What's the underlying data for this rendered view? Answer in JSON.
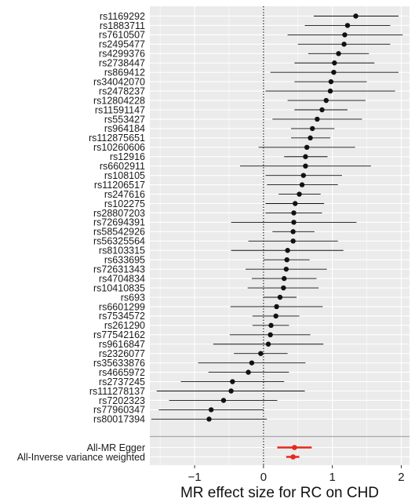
{
  "chart_data": {
    "type": "forest",
    "xlabel": "MR effect size for RC on CHD",
    "xlim": [
      -1.65,
      2.12
    ],
    "xticks": [
      -1,
      0,
      1,
      2
    ],
    "grid": true,
    "reference_line": 0,
    "colors": {
      "panel": "#ebebeb",
      "grid": "#ffffff",
      "snp": "#111111",
      "summary": "#e8281c"
    },
    "snps": [
      {
        "label": "rs1169292",
        "est": 1.34,
        "lo": 0.73,
        "hi": 1.96
      },
      {
        "label": "rs1883711",
        "est": 1.22,
        "lo": 0.6,
        "hi": 1.84
      },
      {
        "label": "rs7610507",
        "est": 1.18,
        "lo": 0.35,
        "hi": 2.02
      },
      {
        "label": "rs2495477",
        "est": 1.17,
        "lo": 0.5,
        "hi": 1.84
      },
      {
        "label": "rs4299376",
        "est": 1.09,
        "lo": 0.65,
        "hi": 1.53
      },
      {
        "label": "rs2738447",
        "est": 1.03,
        "lo": 0.45,
        "hi": 1.61
      },
      {
        "label": "rs869412",
        "est": 1.02,
        "lo": 0.1,
        "hi": 1.96
      },
      {
        "label": "rs34042070",
        "est": 0.98,
        "lo": 0.45,
        "hi": 1.5
      },
      {
        "label": "rs2478237",
        "est": 0.97,
        "lo": 0.03,
        "hi": 1.91
      },
      {
        "label": "rs12804228",
        "est": 0.91,
        "lo": 0.35,
        "hi": 1.48
      },
      {
        "label": "rs11591147",
        "est": 0.85,
        "lo": 0.45,
        "hi": 1.22
      },
      {
        "label": "rs553427",
        "est": 0.78,
        "lo": 0.13,
        "hi": 1.43
      },
      {
        "label": "rs964184",
        "est": 0.71,
        "lo": 0.4,
        "hi": 1.03
      },
      {
        "label": "rs112875651",
        "est": 0.68,
        "lo": 0.4,
        "hi": 0.97
      },
      {
        "label": "rs10260606",
        "est": 0.63,
        "lo": -0.07,
        "hi": 1.33
      },
      {
        "label": "rs12916",
        "est": 0.61,
        "lo": 0.3,
        "hi": 0.93
      },
      {
        "label": "rs6602911",
        "est": 0.61,
        "lo": -0.34,
        "hi": 1.56
      },
      {
        "label": "rs108105",
        "est": 0.58,
        "lo": 0.03,
        "hi": 1.14
      },
      {
        "label": "rs11206517",
        "est": 0.56,
        "lo": 0.05,
        "hi": 1.08
      },
      {
        "label": "rs247616",
        "est": 0.52,
        "lo": 0.22,
        "hi": 0.83
      },
      {
        "label": "rs102275",
        "est": 0.46,
        "lo": 0.03,
        "hi": 0.88
      },
      {
        "label": "rs28807203",
        "est": 0.44,
        "lo": 0.03,
        "hi": 0.85
      },
      {
        "label": "rs72694391",
        "est": 0.44,
        "lo": -0.47,
        "hi": 1.35
      },
      {
        "label": "rs58542926",
        "est": 0.43,
        "lo": 0.13,
        "hi": 0.74
      },
      {
        "label": "rs56325564",
        "est": 0.43,
        "lo": -0.22,
        "hi": 1.08
      },
      {
        "label": "rs8103315",
        "est": 0.35,
        "lo": -0.47,
        "hi": 1.16
      },
      {
        "label": "rs633695",
        "est": 0.34,
        "lo": 0.0,
        "hi": 0.67
      },
      {
        "label": "rs72631343",
        "est": 0.33,
        "lo": -0.26,
        "hi": 0.92
      },
      {
        "label": "rs4704834",
        "est": 0.3,
        "lo": -0.17,
        "hi": 0.77
      },
      {
        "label": "rs10410835",
        "est": 0.29,
        "lo": -0.23,
        "hi": 0.8
      },
      {
        "label": "rs693",
        "est": 0.24,
        "lo": 0.0,
        "hi": 0.48
      },
      {
        "label": "rs6601299",
        "est": 0.19,
        "lo": -0.48,
        "hi": 0.86
      },
      {
        "label": "rs7534572",
        "est": 0.18,
        "lo": -0.16,
        "hi": 0.52
      },
      {
        "label": "rs261290",
        "est": 0.11,
        "lo": -0.16,
        "hi": 0.37
      },
      {
        "label": "rs77542162",
        "est": 0.1,
        "lo": -0.49,
        "hi": 0.68
      },
      {
        "label": "rs9616847",
        "est": 0.07,
        "lo": -0.73,
        "hi": 0.87
      },
      {
        "label": "rs2326077",
        "est": -0.04,
        "lo": -0.43,
        "hi": 0.35
      },
      {
        "label": "rs35633876",
        "est": -0.17,
        "lo": -0.95,
        "hi": 0.61
      },
      {
        "label": "rs4665972",
        "est": -0.22,
        "lo": -0.8,
        "hi": 0.37
      },
      {
        "label": "rs2737245",
        "est": -0.45,
        "lo": -1.2,
        "hi": 0.3
      },
      {
        "label": "rs111278137",
        "est": -0.47,
        "lo": -1.55,
        "hi": 0.6
      },
      {
        "label": "rs7202323",
        "est": -0.58,
        "lo": -1.37,
        "hi": 0.2
      },
      {
        "label": "rs77960347",
        "est": -0.76,
        "lo": -1.52,
        "hi": 0.0
      },
      {
        "label": "rs80017394",
        "est": -0.79,
        "lo": -1.63,
        "hi": 0.05
      }
    ],
    "summary": [
      {
        "label": "All-MR Egger",
        "est": 0.45,
        "lo": 0.2,
        "hi": 0.7
      },
      {
        "label": "All-Inverse variance weighted",
        "est": 0.43,
        "lo": 0.33,
        "hi": 0.52
      }
    ]
  }
}
